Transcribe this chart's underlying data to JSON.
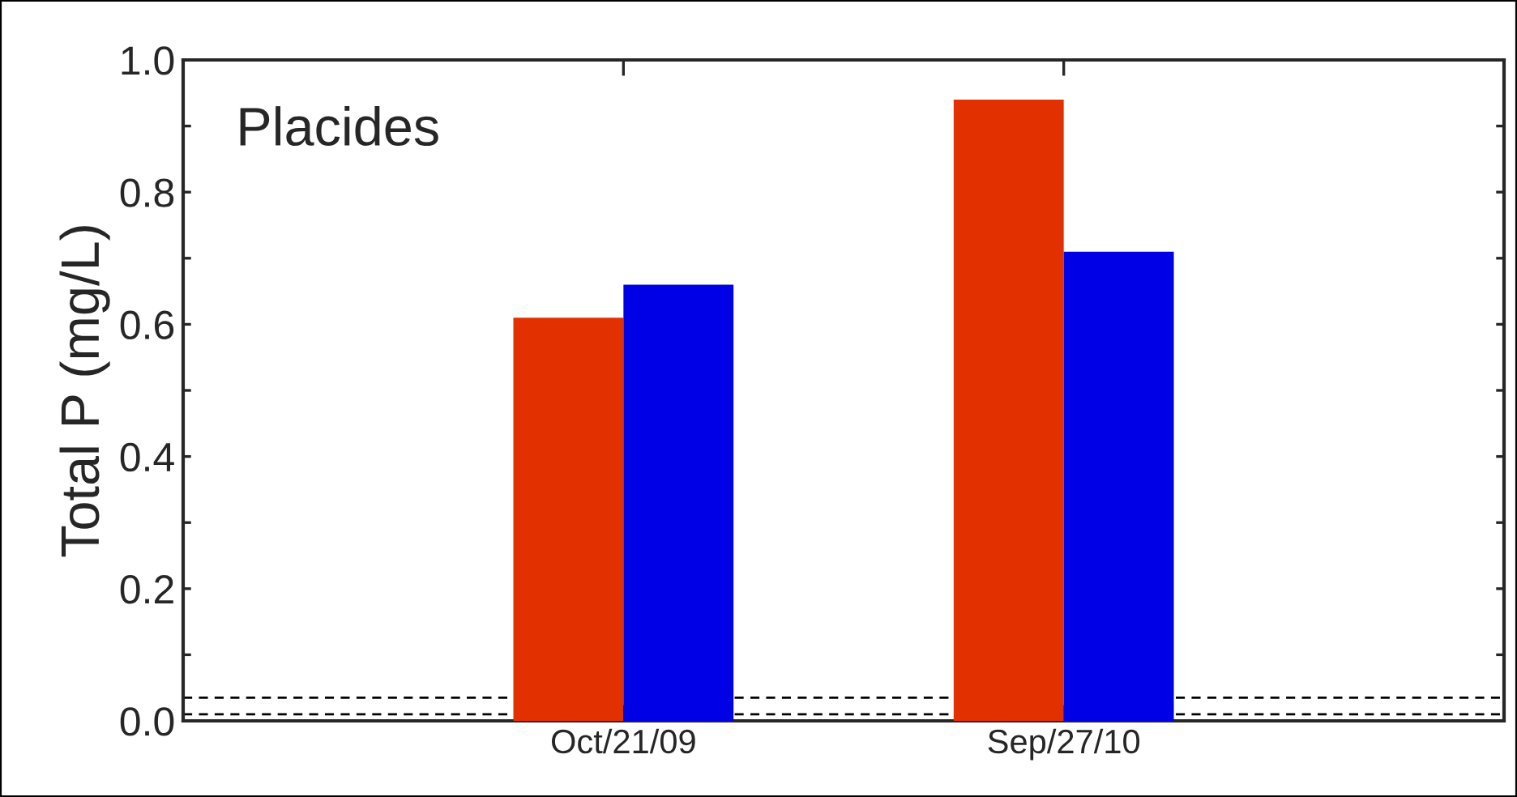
{
  "chart_data": {
    "type": "bar",
    "title": "Placides",
    "ylabel": "Total P (mg/L)",
    "categories": [
      "Oct/21/09",
      "Sep/27/10"
    ],
    "series": [
      {
        "color": "#e33000",
        "values": [
          0.61,
          0.94
        ]
      },
      {
        "color": "#0000e6",
        "values": [
          0.66,
          0.71
        ]
      }
    ],
    "ylim": [
      0,
      1.0
    ],
    "yticks": [
      {
        "value": 0,
        "label": "0.0"
      },
      {
        "value": 0.1,
        "label": null
      },
      0.2,
      {
        "value": 0.3,
        "label": null
      },
      0.4,
      {
        "value": 0.5,
        "label": null
      },
      0.6,
      {
        "value": 0.7,
        "label": null
      },
      0.8,
      {
        "value": 0.9,
        "label": null
      },
      {
        "value": 1,
        "label": "1.0"
      }
    ],
    "ref_lines": [
      {
        "axis": "y",
        "value": 0.01,
        "line_style": "dashed",
        "color": "#000000"
      },
      {
        "axis": "y",
        "value": 0.035,
        "line_style": "dashed",
        "color": "#000000"
      }
    ],
    "grid": false,
    "legend": false
  }
}
